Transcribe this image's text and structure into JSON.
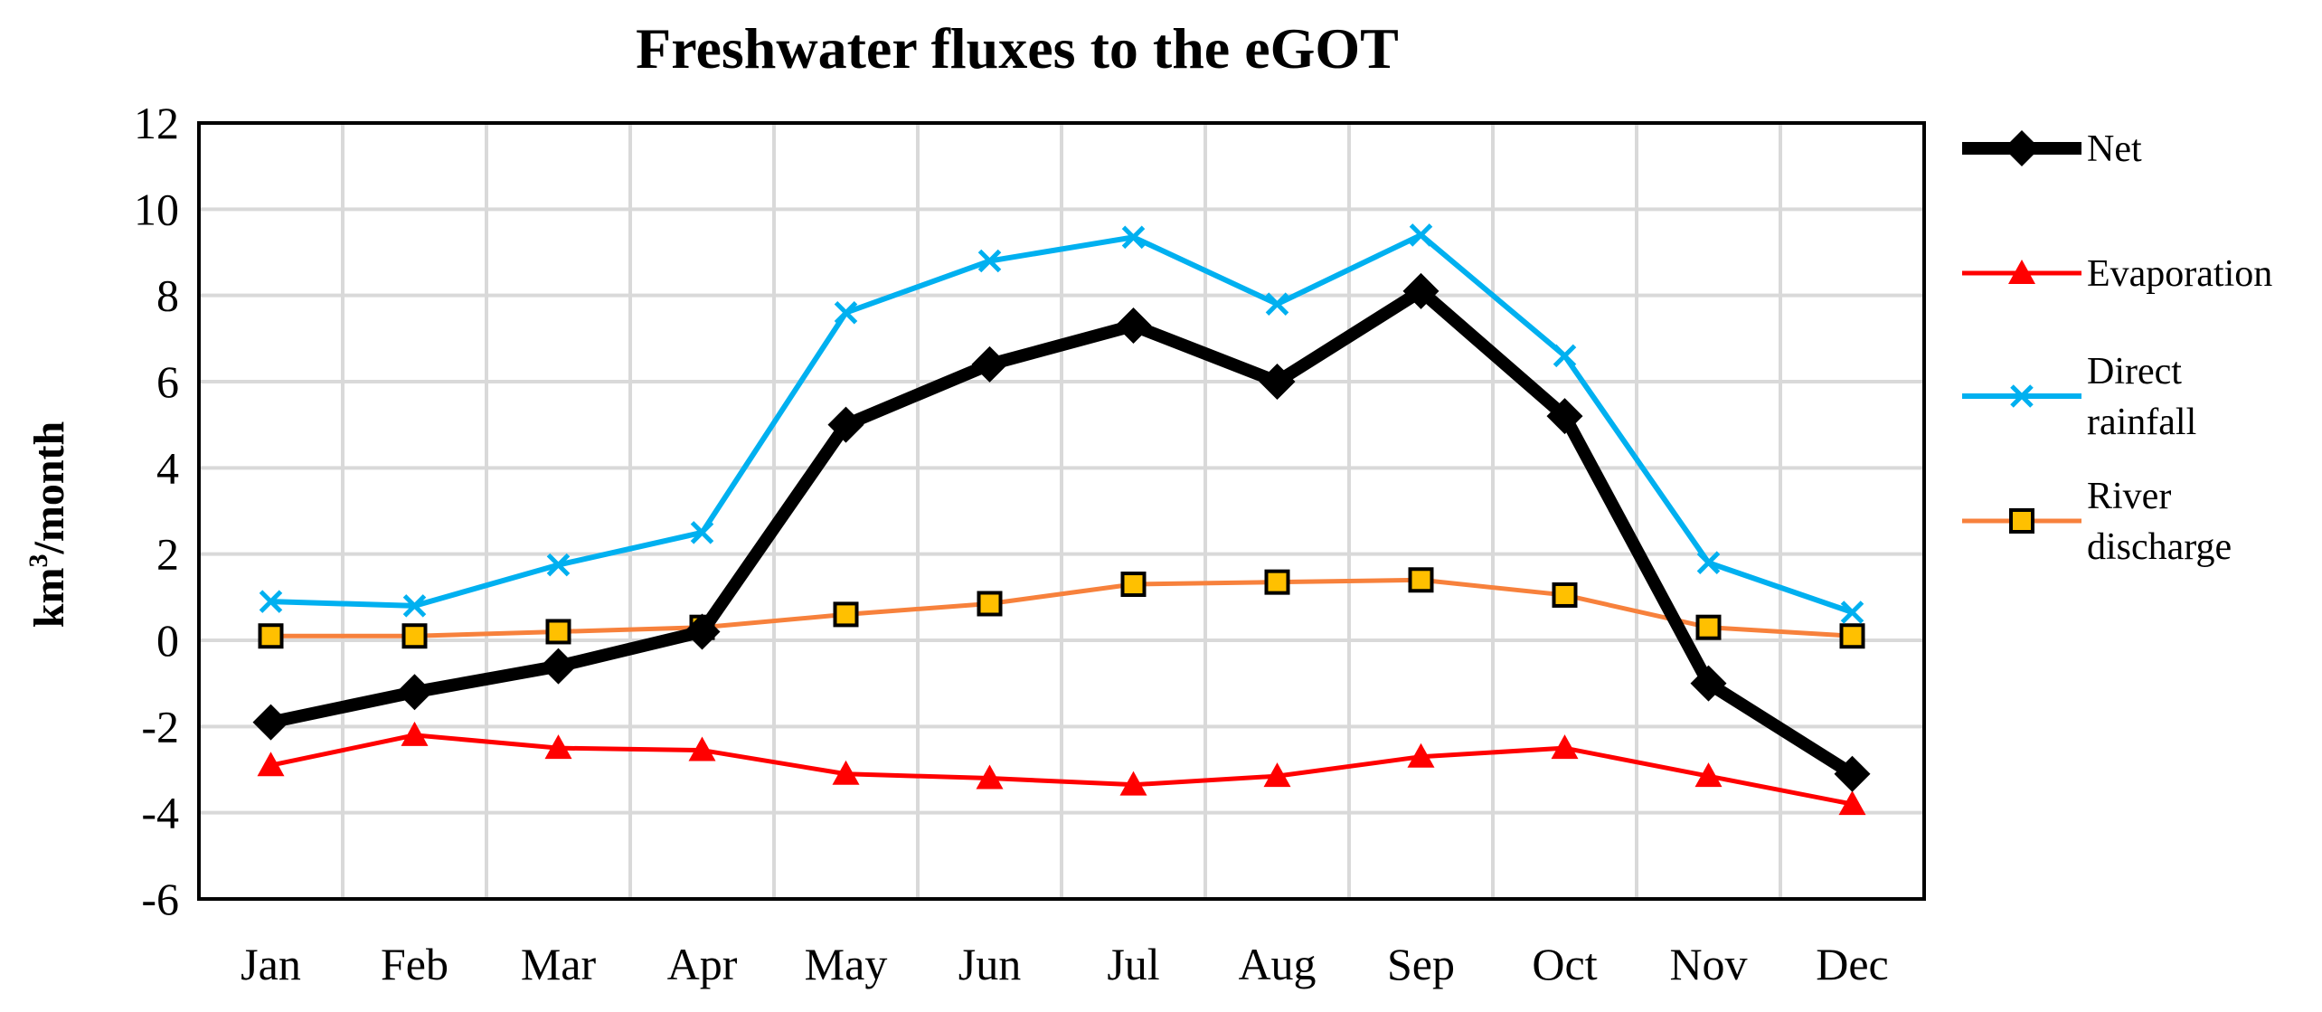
{
  "chart_data": {
    "type": "line",
    "title": "Freshwater fluxes to the eGOT",
    "xlabel": "",
    "ylabel": "km³/month",
    "ylabel_base": "km",
    "ylabel_sup": "3",
    "ylabel_rest": "/month",
    "categories": [
      "Jan",
      "Feb",
      "Mar",
      "Apr",
      "May",
      "Jun",
      "Jul",
      "Aug",
      "Sep",
      "Oct",
      "Nov",
      "Dec"
    ],
    "ylim": [
      -6,
      12
    ],
    "yticks": [
      -6,
      -4,
      -2,
      0,
      2,
      4,
      6,
      8,
      10,
      12
    ],
    "grid": true,
    "legend_position": "right",
    "series": [
      {
        "name": "Net",
        "legend_lines": [
          "Net"
        ],
        "color": "#000000",
        "marker": "diamond",
        "values": [
          -1.9,
          -1.2,
          -0.6,
          0.2,
          5.0,
          6.4,
          7.3,
          6.0,
          8.1,
          5.2,
          -1.0,
          -3.1
        ]
      },
      {
        "name": "Evaporation",
        "legend_lines": [
          "Evaporation"
        ],
        "color": "#ff0000",
        "marker": "triangle",
        "values": [
          -2.9,
          -2.2,
          -2.5,
          -2.55,
          -3.1,
          -3.2,
          -3.35,
          -3.15,
          -2.7,
          -2.5,
          -3.15,
          -3.8
        ]
      },
      {
        "name": "Direct rainfall",
        "legend_lines": [
          "Direct",
          "rainfall"
        ],
        "color": "#00b0f0",
        "marker": "x",
        "values": [
          0.9,
          0.8,
          1.75,
          2.5,
          7.6,
          8.8,
          9.35,
          7.8,
          9.4,
          6.6,
          1.8,
          0.65
        ]
      },
      {
        "name": "River discharge",
        "legend_lines": [
          "River",
          "discharge"
        ],
        "color": "#f7813c",
        "marker": "square",
        "marker_fill": "#ffc000",
        "values": [
          0.1,
          0.1,
          0.2,
          0.3,
          0.6,
          0.85,
          1.3,
          1.35,
          1.4,
          1.05,
          0.3,
          0.1
        ]
      }
    ]
  }
}
